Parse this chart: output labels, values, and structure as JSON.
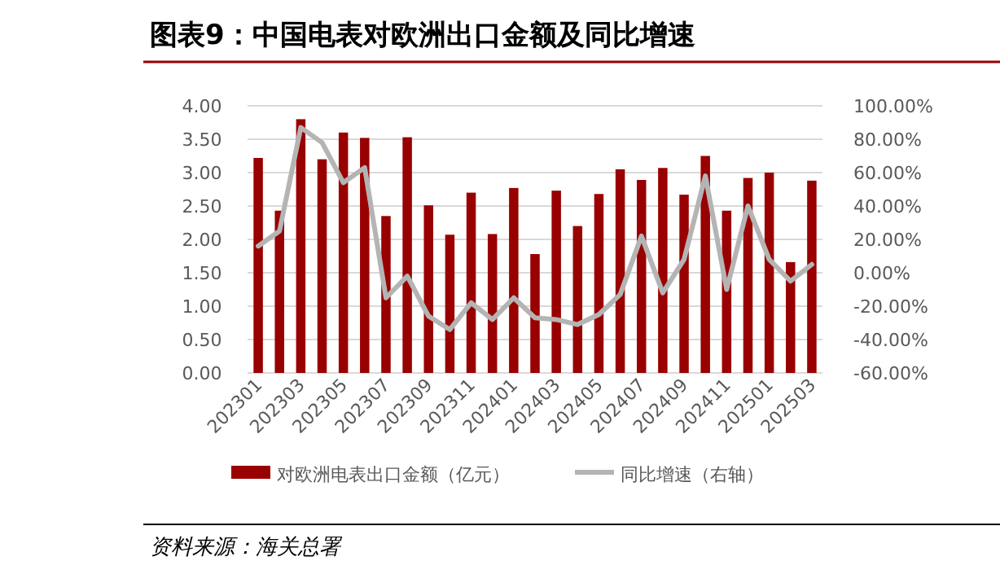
{
  "chart_data": {
    "type": "bar",
    "title": "图表9：中国电表对欧洲出口金额及同比增速",
    "categories": [
      "202301",
      null,
      "202303",
      null,
      "202305",
      null,
      "202307",
      null,
      "202309",
      null,
      "202311",
      null,
      "202401",
      null,
      "202403",
      null,
      "202405",
      null,
      "202407",
      null,
      "202409",
      null,
      "202411",
      null,
      "202501",
      null,
      "202503"
    ],
    "series": [
      {
        "name": "对欧洲电表出口金额（亿元）",
        "color": "#990000",
        "values": [
          3.22,
          2.43,
          3.8,
          3.2,
          3.6,
          3.52,
          2.35,
          3.53,
          2.51,
          2.07,
          2.7,
          2.08,
          2.77,
          1.78,
          2.73,
          2.2,
          2.68,
          3.05,
          2.89,
          3.07,
          2.67,
          3.25,
          2.43,
          2.92,
          3.0,
          1.66,
          2.88
        ]
      },
      {
        "name": "同比增速（右轴）",
        "type": "line",
        "axis": "y2",
        "color": "#b4b4b4",
        "marker": "none",
        "values": [
          16,
          25,
          87,
          78,
          54,
          63,
          -15,
          -2,
          -26,
          -34,
          -18,
          -28,
          -15,
          -27,
          -28,
          -31,
          -25,
          -13,
          22,
          -12,
          8,
          58,
          -10,
          40,
          8,
          -5,
          5
        ]
      }
    ],
    "ylim": [
      0,
      4
    ],
    "yticks": [
      {
        "value": 0,
        "label": "0.00"
      },
      {
        "value": 0.5,
        "label": "0.50"
      },
      {
        "value": 1,
        "label": "1.00"
      },
      {
        "value": 1.5,
        "label": "1.50"
      },
      {
        "value": 2,
        "label": "2.00"
      },
      {
        "value": 2.5,
        "label": "2.50"
      },
      {
        "value": 3,
        "label": "3.00"
      },
      {
        "value": 3.5,
        "label": "3.50"
      },
      {
        "value": 4,
        "label": "4.00"
      }
    ],
    "y2lim": [
      -60,
      100
    ],
    "y2ticks": [
      {
        "value": -60,
        "label": "-60.00%"
      },
      {
        "value": -40,
        "label": "-40.00%"
      },
      {
        "value": -20,
        "label": "-20.00%"
      },
      {
        "value": 0,
        "label": "0.00%"
      },
      {
        "value": 20,
        "label": "20.00%"
      },
      {
        "value": 40,
        "label": "40.00%"
      },
      {
        "value": 60,
        "label": "60.00%"
      },
      {
        "value": 80,
        "label": "80.00%"
      },
      {
        "value": 100,
        "label": "100.00%"
      }
    ],
    "grid": "y",
    "legend": "bottom",
    "annotations": [
      "资料来源：海关总署"
    ]
  }
}
